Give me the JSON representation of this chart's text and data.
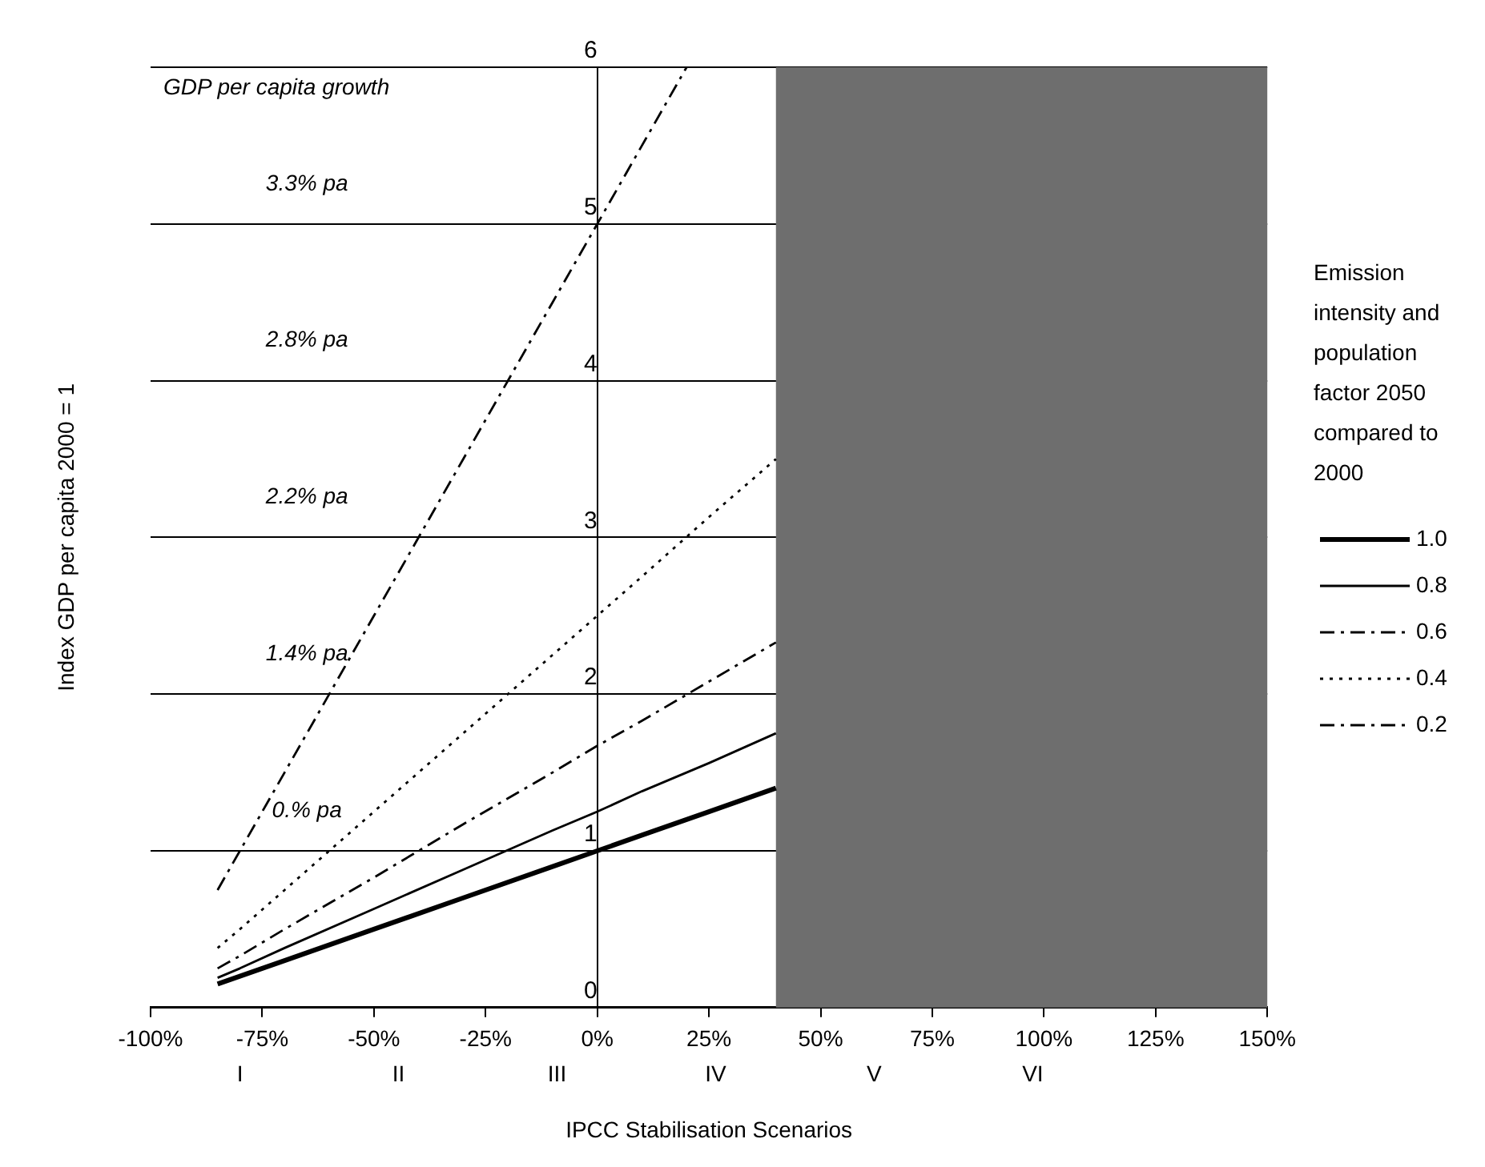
{
  "chart_data": {
    "type": "line",
    "xlabel": "IPCC Stabilisation Scenarios",
    "ylabel": "Index GDP per capita 2000 = 1",
    "legend_title": "Emission intensity and population factor 2050 compared to 2000",
    "legend": "right",
    "grid": "y",
    "marker": "none",
    "xlim": [
      -100,
      150
    ],
    "xticks": [
      {
        "value": -100,
        "label": "-100%"
      },
      {
        "value": -75,
        "label": "-75%"
      },
      {
        "value": -50,
        "label": "-50%"
      },
      {
        "value": -25,
        "label": "-25%"
      },
      {
        "value": 0,
        "label": "0%"
      },
      {
        "value": 25,
        "label": "25%"
      },
      {
        "value": 50,
        "label": "50%"
      },
      {
        "value": 75,
        "label": "75%"
      },
      {
        "value": 100,
        "label": "100%"
      },
      {
        "value": 125,
        "label": "125%"
      },
      {
        "value": 150,
        "label": "150%"
      }
    ],
    "ylim": [
      0,
      6
    ],
    "yticks": [
      0,
      1,
      2,
      3,
      4,
      5,
      6
    ],
    "series": [
      {
        "name": "1.0",
        "color": "#000000",
        "line_style": "solid",
        "x": [
          -85,
          -80,
          -70,
          -50,
          -30,
          -10,
          0,
          10,
          25,
          40
        ],
        "values": [
          0.15,
          0.2,
          0.3,
          0.5,
          0.7,
          0.9,
          1,
          1.1,
          1.25,
          1.4
        ]
      },
      {
        "name": "0.8",
        "color": "#000000",
        "line_style": "solid",
        "x": [
          -85,
          -80,
          -70,
          -50,
          -30,
          -10,
          0,
          10,
          25,
          40
        ],
        "values": [
          0.19,
          0.25,
          0.38,
          0.63,
          0.88,
          1.13,
          1.25,
          1.38,
          1.56,
          1.75
        ]
      },
      {
        "name": "0.6",
        "color": "#000000",
        "line_style": "dashed",
        "x": [
          -85,
          -80,
          -70,
          -50,
          -30,
          -10,
          0,
          10,
          25,
          40
        ],
        "values": [
          0.25,
          0.33,
          0.5,
          0.83,
          1.17,
          1.5,
          1.67,
          1.83,
          2.08,
          2.33
        ]
      },
      {
        "name": "0.4",
        "color": "#000000",
        "line_style": "dotted",
        "x": [
          -85,
          -80,
          -70,
          -50,
          -30,
          -10,
          0,
          10,
          25,
          40
        ],
        "values": [
          0.38,
          0.5,
          0.75,
          1.25,
          1.75,
          2.25,
          2.5,
          2.75,
          3.13,
          3.5
        ]
      },
      {
        "name": "0.2",
        "color": "#000000",
        "line_style": "dashed",
        "x": [
          -85,
          -80,
          -70,
          -50,
          -30,
          -10,
          0,
          10,
          20
        ],
        "values": [
          0.75,
          1,
          1.5,
          2.5,
          3.5,
          4.5,
          5,
          5.5,
          6
        ]
      }
    ],
    "bands": [
      {
        "axis": "x",
        "from": 40,
        "to": 150,
        "color": "#6e6e6e"
      }
    ],
    "annotations": [
      "GDP per capita growth",
      "3.3% pa",
      "2.8% pa",
      "2.2% pa",
      "1.4% pa",
      "0.% pa",
      "I",
      "II",
      "III",
      "IV",
      "V",
      "VI"
    ]
  }
}
